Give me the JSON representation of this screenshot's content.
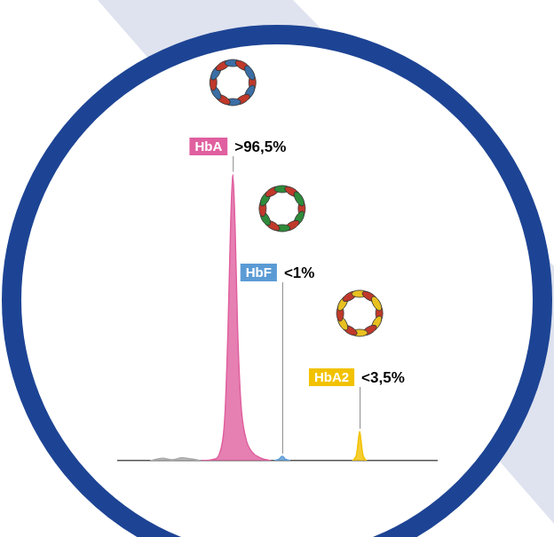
{
  "chart_data": {
    "type": "line",
    "xlim": [
      0,
      100
    ],
    "ylim": [
      0,
      100
    ],
    "grid": false,
    "tick_labels": false,
    "series": [
      {
        "color": "#aaaaaa",
        "x": [
          10,
          14,
          17,
          20,
          23,
          26
        ],
        "values": [
          0,
          0.8,
          0.3,
          1,
          0.6,
          0
        ]
      },
      {
        "name": "HbA",
        "annotation": ">96,5%",
        "color": "#e0609f",
        "x": [
          26,
          30,
          32,
          33.5,
          34.5,
          35.3,
          36,
          36.7,
          37.5,
          38.5,
          40,
          42,
          45,
          48
        ],
        "values": [
          0,
          0.5,
          3,
          15,
          45,
          80,
          98,
          80,
          45,
          20,
          8,
          3,
          0.8,
          0
        ]
      },
      {
        "name": "HbF",
        "annotation": "<1%",
        "color": "#5b9bd5",
        "x": [
          49,
          50.5,
          51.5,
          52.5,
          54
        ],
        "values": [
          0,
          0.5,
          1.5,
          0.5,
          0
        ]
      },
      {
        "name": "HbA2",
        "annotation": "<3,5%",
        "color": "#f2c200",
        "x": [
          73.5,
          74.8,
          75.4,
          75.8,
          76.2,
          76.8,
          78
        ],
        "values": [
          0,
          2,
          7,
          10,
          7,
          2,
          0
        ]
      }
    ]
  }
}
